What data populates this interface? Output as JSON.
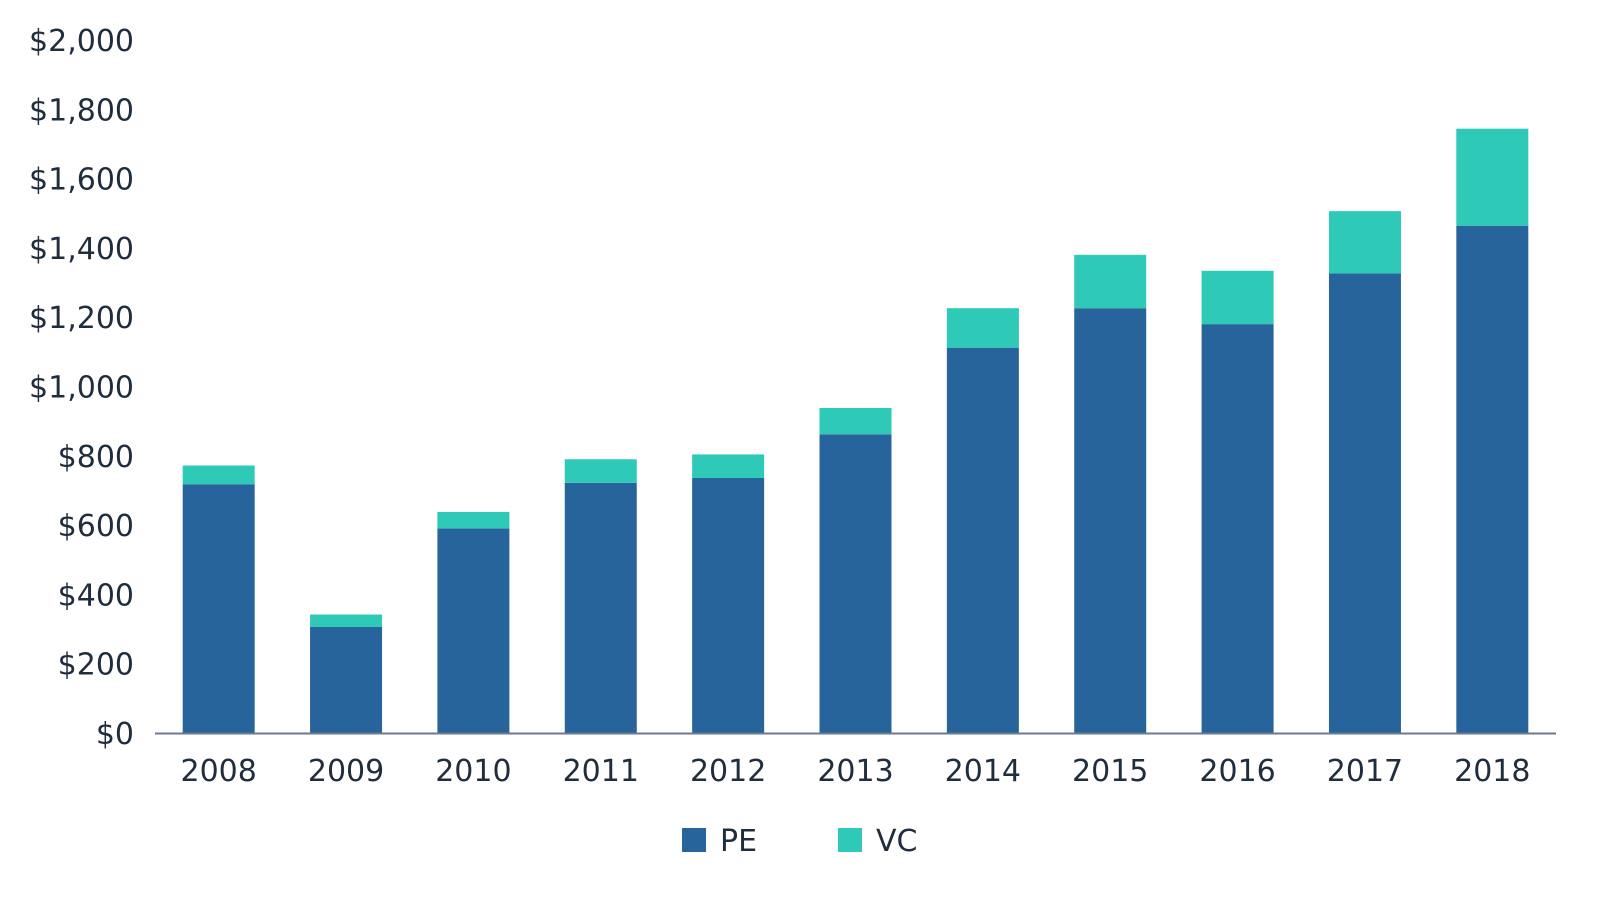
{
  "chart_data": {
    "type": "bar",
    "stacked": true,
    "title": "",
    "xlabel": "",
    "ylabel": "",
    "categories": [
      "2008",
      "2009",
      "2010",
      "2011",
      "2012",
      "2013",
      "2014",
      "2015",
      "2016",
      "2017",
      "2018"
    ],
    "series": [
      {
        "name": "PE",
        "color": "#27649b",
        "values": [
          718,
          306,
          590,
          722,
          736,
          862,
          1112,
          1226,
          1180,
          1326,
          1464
        ]
      },
      {
        "name": "VC",
        "color": "#2ec9b7",
        "values": [
          54,
          36,
          48,
          68,
          68,
          76,
          114,
          154,
          154,
          180,
          280
        ]
      }
    ],
    "ylim": [
      0,
      2000
    ],
    "yticks": [
      0,
      200,
      400,
      600,
      800,
      1000,
      1200,
      1400,
      1600,
      1800,
      2000
    ],
    "ytick_labels": [
      "$0",
      "$200",
      "$400",
      "$600",
      "$800",
      "$1,000",
      "$1,200",
      "$1,400",
      "$1,600",
      "$1,800",
      "$2,000"
    ],
    "grid": false,
    "legend": {
      "position": "bottom-center",
      "entries": [
        "PE",
        "VC"
      ]
    },
    "axis_color": "#6b7a8f"
  }
}
